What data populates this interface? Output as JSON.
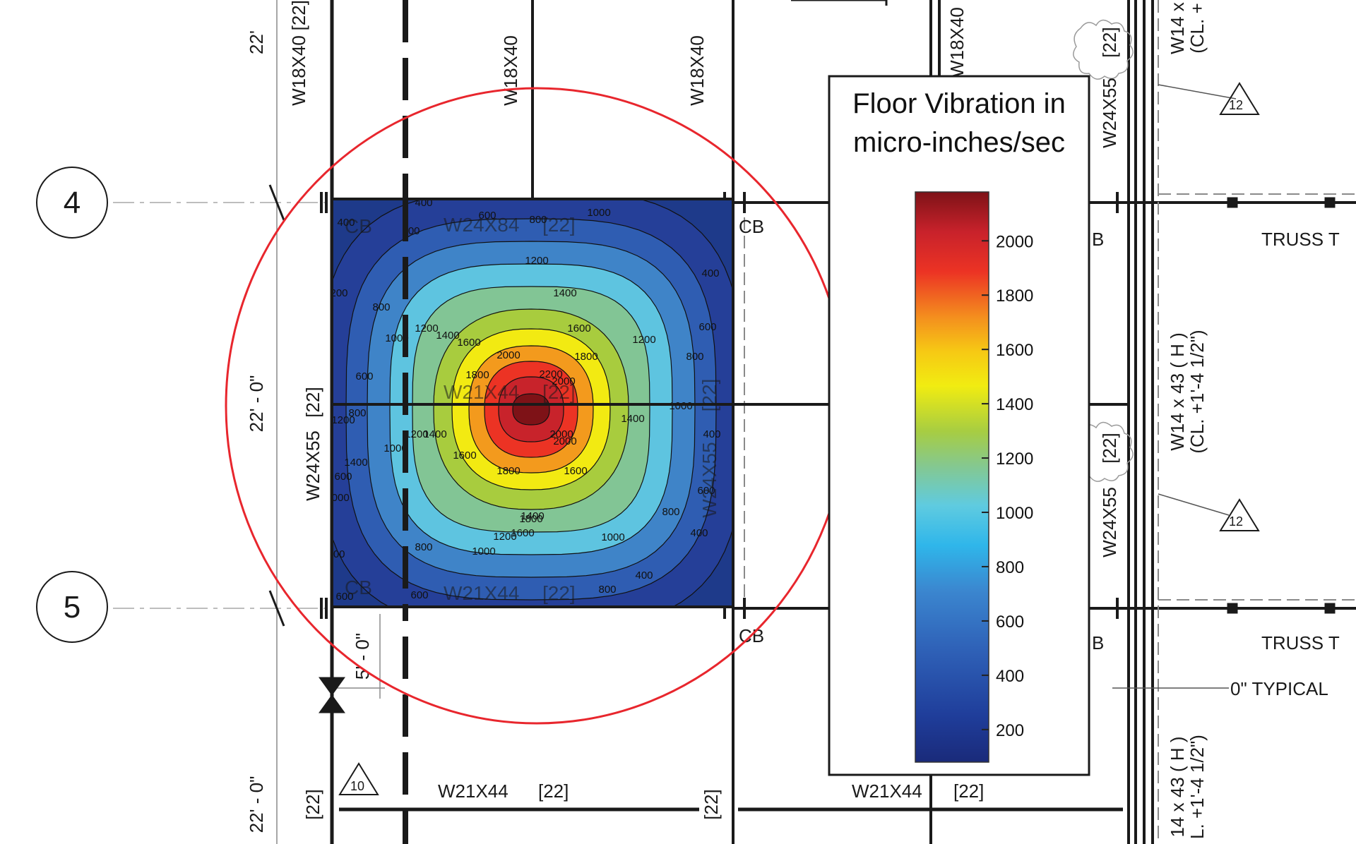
{
  "grid_lines": [
    {
      "id": "grid-line-4",
      "label": "4"
    },
    {
      "id": "grid-line-5",
      "label": "5"
    }
  ],
  "dimensions": {
    "top": "22'",
    "middle": "22' - 0\"",
    "offset": "5' - 0\"",
    "bottom": "22' - 0\""
  },
  "members": {
    "beam_top": "W24X84",
    "beam_top_tag": "[22]",
    "beam_mid": "W21X44",
    "beam_mid_tag": "[22]",
    "beam_bot": "W21X44",
    "beam_bot_tag": "[22]",
    "beam_lower_left": "W21X44",
    "beam_lower_left_tag": "[22]",
    "beam_lower_right": "W21X44",
    "beam_lower_right_tag": "[22]",
    "col_left_vert": "W24X55",
    "col_left_tag": "[22]",
    "col_left_top_tag": "[22]",
    "col_mid_tag": "[22]",
    "col_right_tag": "[22]",
    "bottom_left_tag": "[22]",
    "bottom_mid_tag": "[22]",
    "joist_1": "W18X40",
    "joist_2": "W18X40",
    "joist_3": "W18X40",
    "joist_4": "W18X40",
    "right_w24_1": "W24X55",
    "right_w24_1_tag": "[22]",
    "right_w24_2": "W24X55",
    "right_w24_2_tag": "[22]",
    "right_col_1": "W14 x 43 ( H )",
    "right_col_1_note": "(CL. +1'-4 1/2\")",
    "right_col_top": "W14 x",
    "right_col_top_note": "(CL. +",
    "right_col_bottom": "14 x 43 ( H )",
    "right_col_bottom_note": "L. +1'-4 1/2\")",
    "right_w24_mid_tag": "W24X55",
    "truss_1": "TRUSS T",
    "truss_2": "TRUSS T",
    "typical": "0\" TYPICAL",
    "cb_labels": [
      "CB",
      "CB",
      "CB",
      "CB",
      "CB",
      "B",
      "B"
    ],
    "rev_tags": [
      "12",
      "12",
      "10"
    ]
  },
  "colorbar": {
    "title_line1": "Floor Vibration in",
    "title_line2": "micro-inches/sec",
    "ticks": [
      "2000",
      "1800",
      "1600",
      "1400",
      "1200",
      "1000",
      "800",
      "600",
      "400",
      "200"
    ],
    "min": 80,
    "max": 2180
  },
  "contour": {
    "labels": [
      "400",
      "600",
      "800",
      "1000",
      "1200",
      "1400",
      "1600",
      "1800",
      "2000",
      "2200",
      "400",
      "600",
      "800",
      "1000",
      "1200",
      "1400",
      "1600",
      "1800",
      "2000",
      "600",
      "800",
      "1000",
      "1200",
      "1400",
      "1600",
      "1800",
      "2000",
      "600",
      "800",
      "1000",
      "1200",
      "1400",
      "1600",
      "400",
      "600",
      "800",
      "1000",
      "1200",
      "1400",
      "400",
      "600",
      "800",
      "1000",
      "400",
      "600",
      "800",
      "400",
      "600",
      "800",
      "1000",
      "1200",
      "1400",
      "1600",
      "1800",
      "2000",
      "200"
    ]
  },
  "colors": {
    "outline_circle": "#e8262d",
    "drawing_line": "#1a1a1a"
  }
}
